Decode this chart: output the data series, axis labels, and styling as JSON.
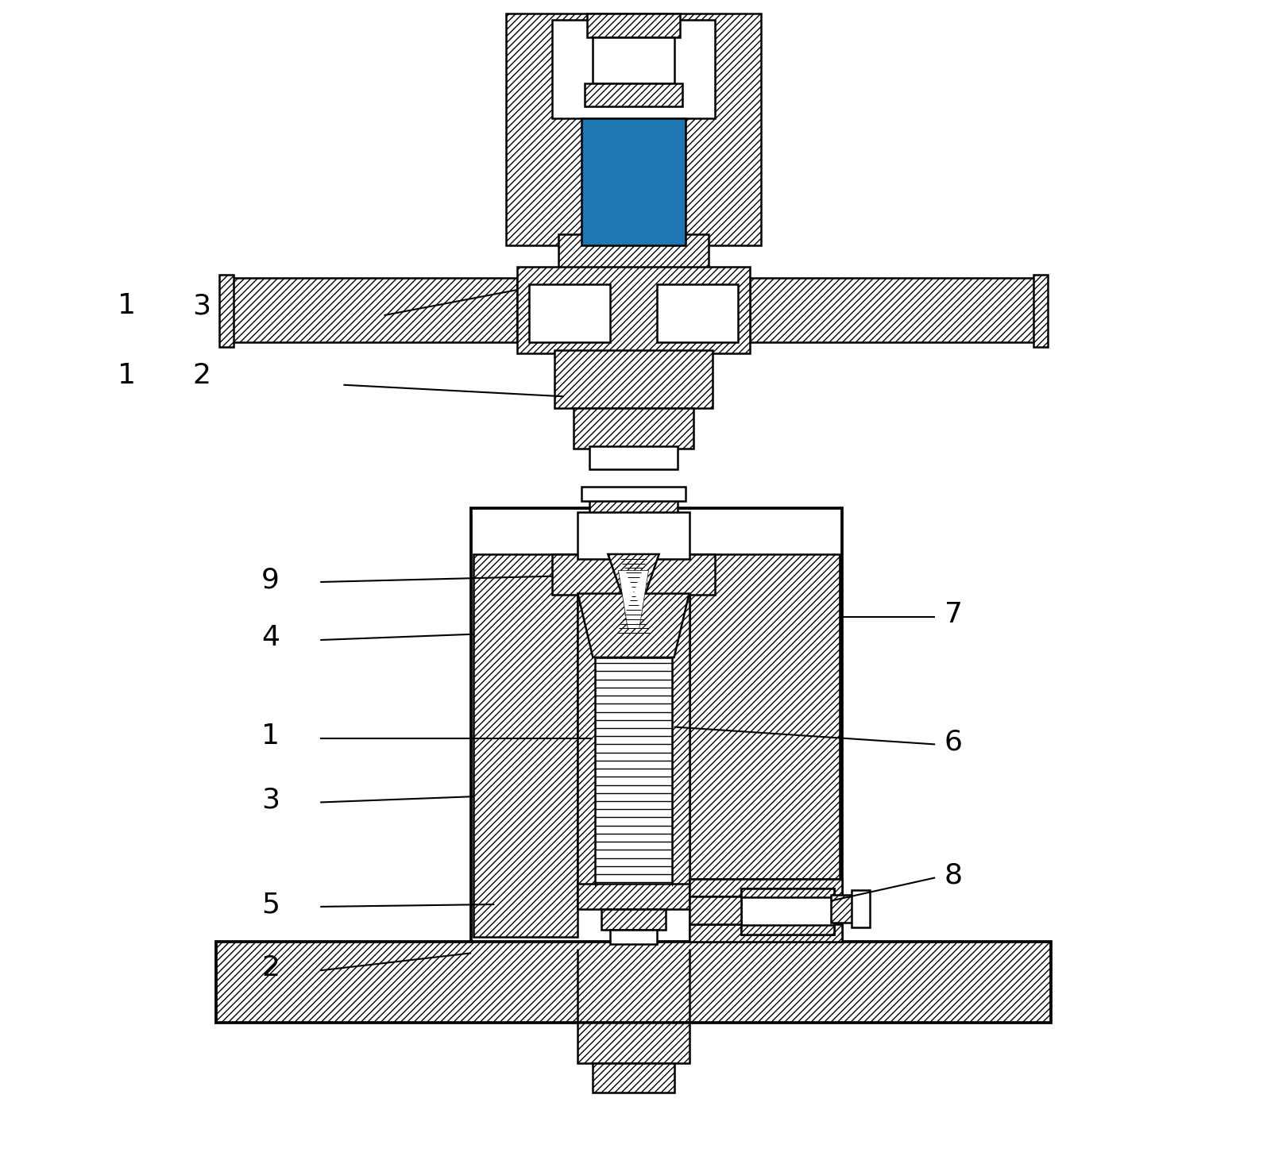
{
  "bg_color": "#ffffff",
  "lw": 1.8,
  "figsize": [
    15.95,
    14.66
  ],
  "dpi": 100,
  "label_fontsize": 26
}
